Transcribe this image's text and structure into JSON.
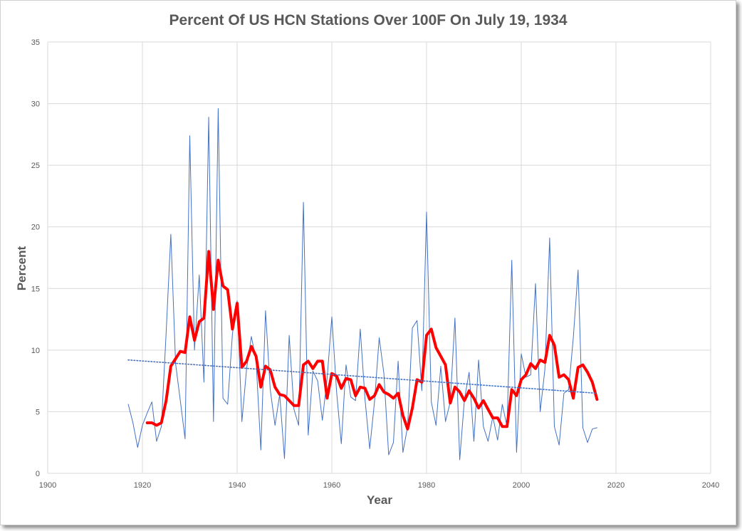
{
  "chart_data": {
    "type": "line",
    "title": "Percent Of US HCN Stations Over 100F On July 19, 1934",
    "xlabel": "Year",
    "ylabel": "Percent",
    "xlim": [
      1900,
      2040
    ],
    "ylim": [
      0,
      35
    ],
    "xticks": [
      "1900",
      "1920",
      "1940",
      "1960",
      "1980",
      "2000",
      "2020",
      "2040"
    ],
    "yticks": [
      "0",
      "5",
      "10",
      "15",
      "20",
      "25",
      "30",
      "35"
    ],
    "grid": true,
    "legend": "none",
    "series": [
      {
        "style": "thin line",
        "color": "#4472c4",
        "x": [
          1917,
          1918,
          1919,
          1920,
          1921,
          1922,
          1923,
          1924,
          1925,
          1926,
          1927,
          1928,
          1929,
          1930,
          1931,
          1932,
          1933,
          1934,
          1935,
          1936,
          1937,
          1938,
          1939,
          1940,
          1941,
          1942,
          1943,
          1944,
          1945,
          1946,
          1947,
          1948,
          1949,
          1950,
          1951,
          1952,
          1953,
          1954,
          1955,
          1956,
          1957,
          1958,
          1959,
          1960,
          1961,
          1962,
          1963,
          1964,
          1965,
          1966,
          1967,
          1968,
          1969,
          1970,
          1971,
          1972,
          1973,
          1974,
          1975,
          1976,
          1977,
          1978,
          1979,
          1980,
          1981,
          1982,
          1983,
          1984,
          1985,
          1986,
          1987,
          1988,
          1989,
          1990,
          1991,
          1992,
          1993,
          1994,
          1995,
          1996,
          1997,
          1998,
          1999,
          2000,
          2001,
          2002,
          2003,
          2004,
          2005,
          2006,
          2007,
          2008,
          2009,
          2010,
          2011,
          2012,
          2013,
          2014,
          2015,
          2016
        ],
        "y": [
          5.6,
          4.1,
          2.1,
          3.9,
          4.9,
          5.8,
          2.6,
          3.8,
          11.4,
          19.4,
          8.9,
          5.9,
          2.8,
          27.4,
          10.0,
          16.1,
          7.4,
          28.9,
          4.2,
          29.6,
          6.1,
          5.6,
          11.3,
          14.0,
          4.2,
          8.5,
          11.1,
          9.2,
          1.9,
          13.2,
          6.8,
          3.9,
          6.4,
          1.2,
          11.2,
          5.2,
          3.9,
          22.0,
          3.1,
          8.3,
          7.5,
          4.3,
          7.7,
          12.7,
          6.6,
          2.4,
          8.8,
          6.2,
          5.9,
          11.7,
          6.0,
          2.0,
          5.8,
          11.0,
          8.1,
          1.5,
          2.5,
          9.1,
          1.7,
          3.8,
          11.8,
          12.4,
          6.7,
          21.2,
          5.8,
          3.9,
          8.7,
          4.2,
          5.8,
          12.6,
          1.1,
          6.0,
          8.2,
          2.6,
          9.2,
          3.8,
          2.6,
          4.6,
          2.7,
          5.6,
          3.8,
          17.3,
          1.7,
          9.7,
          7.8,
          8.0,
          15.4,
          5.0,
          8.5,
          19.1,
          3.8,
          2.3,
          6.5,
          6.8,
          11.0,
          16.5,
          3.7,
          2.5,
          3.6,
          3.7
        ]
      },
      {
        "style": "thick line",
        "color": "#ff0000",
        "x": [
          1921,
          1922,
          1923,
          1924,
          1925,
          1926,
          1927,
          1928,
          1929,
          1930,
          1931,
          1932,
          1933,
          1934,
          1935,
          1936,
          1937,
          1938,
          1939,
          1940,
          1941,
          1942,
          1943,
          1944,
          1945,
          1946,
          1947,
          1948,
          1949,
          1950,
          1951,
          1952,
          1953,
          1954,
          1955,
          1956,
          1957,
          1958,
          1959,
          1960,
          1961,
          1962,
          1963,
          1964,
          1965,
          1966,
          1967,
          1968,
          1969,
          1970,
          1971,
          1972,
          1973,
          1974,
          1975,
          1976,
          1977,
          1978,
          1979,
          1980,
          1981,
          1982,
          1983,
          1984,
          1985,
          1986,
          1987,
          1988,
          1989,
          1990,
          1991,
          1992,
          1993,
          1994,
          1995,
          1996,
          1997,
          1998,
          1999,
          2000,
          2001,
          2002,
          2003,
          2004,
          2005,
          2006,
          2007,
          2008,
          2009,
          2010,
          2011,
          2012,
          2013,
          2014,
          2015,
          2016
        ],
        "y": [
          4.1,
          4.1,
          3.9,
          4.1,
          5.9,
          8.7,
          9.3,
          9.9,
          9.8,
          12.7,
          10.8,
          12.3,
          12.6,
          18.0,
          13.3,
          17.3,
          15.2,
          14.9,
          11.7,
          13.8,
          8.6,
          9.1,
          10.3,
          9.5,
          7.0,
          8.7,
          8.4,
          7.0,
          6.4,
          6.3,
          5.9,
          5.5,
          5.5,
          8.8,
          9.1,
          8.5,
          9.1,
          9.1,
          6.1,
          8.1,
          7.9,
          6.9,
          7.7,
          7.6,
          6.3,
          7.0,
          6.9,
          6.0,
          6.3,
          7.2,
          6.6,
          6.4,
          6.1,
          6.5,
          4.7,
          3.6,
          5.3,
          7.6,
          7.4,
          11.2,
          11.7,
          10.2,
          9.5,
          8.8,
          5.7,
          7.0,
          6.6,
          5.9,
          6.7,
          6.1,
          5.3,
          5.9,
          5.2,
          4.5,
          4.5,
          3.8,
          3.8,
          6.8,
          6.3,
          7.6,
          8.0,
          8.9,
          8.5,
          9.2,
          9.0,
          11.2,
          10.4,
          7.8,
          8.0,
          7.6,
          6.1,
          8.6,
          8.8,
          8.2,
          7.4,
          6.0
        ]
      },
      {
        "style": "dotted trendline",
        "color": "#4472c4",
        "x": [
          1917,
          2016
        ],
        "y": [
          9.2,
          6.5
        ]
      }
    ]
  }
}
